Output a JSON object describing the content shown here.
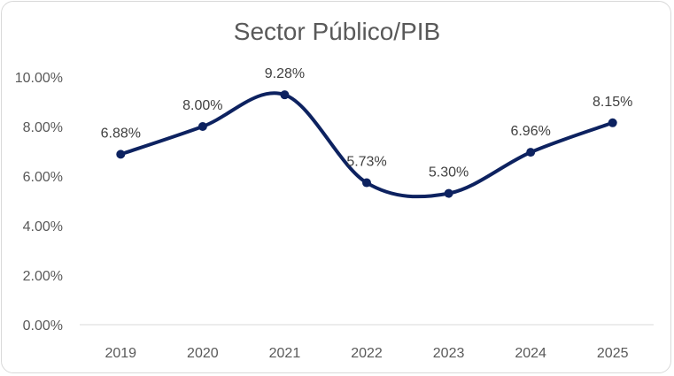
{
  "chart_data": {
    "type": "line",
    "title": "Sector Público/PIB",
    "categories": [
      "2019",
      "2020",
      "2021",
      "2022",
      "2023",
      "2024",
      "2025"
    ],
    "series": [
      {
        "values": [
          6.88,
          8.0,
          9.28,
          5.73,
          5.3,
          6.96,
          8.15
        ],
        "data_labels": [
          "6.88%",
          "8.00%",
          "9.28%",
          "5.73%",
          "5.30%",
          "6.96%",
          "8.15%"
        ],
        "color": "#0d2260"
      }
    ],
    "y_ticks": [
      "0.00%",
      "2.00%",
      "4.00%",
      "6.00%",
      "8.00%",
      "10.00%"
    ],
    "ylim": [
      0,
      10
    ],
    "xlabel": "",
    "ylabel": "",
    "grid": false,
    "legend": "none",
    "smooth": true
  }
}
